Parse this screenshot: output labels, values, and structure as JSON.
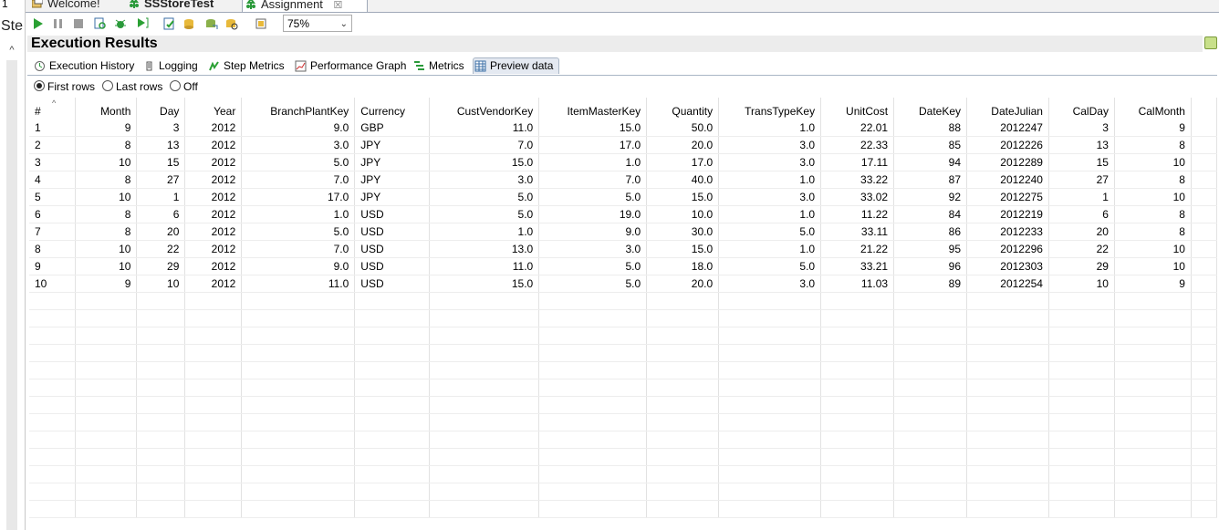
{
  "left": {
    "number": "1",
    "label": "Ste"
  },
  "editor_tabs": [
    {
      "label": "Welcome!"
    },
    {
      "label": "SSStoreTest"
    },
    {
      "label": "Assignment",
      "close": "☒"
    }
  ],
  "toolbar": {
    "zoom": "75%"
  },
  "results": {
    "title": "Execution Results",
    "subtabs": [
      {
        "label": "Execution History",
        "icon": "history-icon"
      },
      {
        "label": "Logging",
        "icon": "logging-icon"
      },
      {
        "label": "Step Metrics",
        "icon": "step-metrics-icon"
      },
      {
        "label": "Performance Graph",
        "icon": "performance-graph-icon"
      },
      {
        "label": "Metrics",
        "icon": "metrics-icon"
      },
      {
        "label": "Preview data",
        "icon": "table-icon"
      }
    ],
    "radios": [
      {
        "label": "First rows",
        "checked": true
      },
      {
        "label": "Last rows",
        "checked": false
      },
      {
        "label": "Off",
        "checked": false
      }
    ]
  },
  "table": {
    "columns": [
      "#",
      "Month",
      "Day",
      "Year",
      "BranchPlantKey",
      "Currency",
      "CustVendorKey",
      "ItemMasterKey",
      "Quantity",
      "TransTypeKey",
      "UnitCost",
      "DateKey",
      "DateJulian",
      "CalDay",
      "CalMonth"
    ],
    "rows": [
      [
        "1",
        "9",
        "3",
        "2012",
        "9.0",
        "GBP",
        "11.0",
        "15.0",
        "50.0",
        "1.0",
        "22.01",
        "88",
        "2012247",
        "3",
        "9"
      ],
      [
        "2",
        "8",
        "13",
        "2012",
        "3.0",
        "JPY",
        "7.0",
        "17.0",
        "20.0",
        "3.0",
        "22.33",
        "85",
        "2012226",
        "13",
        "8"
      ],
      [
        "3",
        "10",
        "15",
        "2012",
        "5.0",
        "JPY",
        "15.0",
        "1.0",
        "17.0",
        "3.0",
        "17.11",
        "94",
        "2012289",
        "15",
        "10"
      ],
      [
        "4",
        "8",
        "27",
        "2012",
        "7.0",
        "JPY",
        "3.0",
        "7.0",
        "40.0",
        "1.0",
        "33.22",
        "87",
        "2012240",
        "27",
        "8"
      ],
      [
        "5",
        "10",
        "1",
        "2012",
        "17.0",
        "JPY",
        "5.0",
        "5.0",
        "15.0",
        "3.0",
        "33.02",
        "92",
        "2012275",
        "1",
        "10"
      ],
      [
        "6",
        "8",
        "6",
        "2012",
        "1.0",
        "USD",
        "5.0",
        "19.0",
        "10.0",
        "1.0",
        "11.22",
        "84",
        "2012219",
        "6",
        "8"
      ],
      [
        "7",
        "8",
        "20",
        "2012",
        "5.0",
        "USD",
        "1.0",
        "9.0",
        "30.0",
        "5.0",
        "33.11",
        "86",
        "2012233",
        "20",
        "8"
      ],
      [
        "8",
        "10",
        "22",
        "2012",
        "7.0",
        "USD",
        "13.0",
        "3.0",
        "15.0",
        "1.0",
        "21.22",
        "95",
        "2012296",
        "22",
        "10"
      ],
      [
        "9",
        "10",
        "29",
        "2012",
        "9.0",
        "USD",
        "11.0",
        "5.0",
        "18.0",
        "5.0",
        "33.21",
        "96",
        "2012303",
        "29",
        "10"
      ],
      [
        "10",
        "9",
        "10",
        "2012",
        "11.0",
        "USD",
        "15.0",
        "5.0",
        "20.0",
        "3.0",
        "11.03",
        "89",
        "2012254",
        "10",
        "9"
      ]
    ]
  }
}
